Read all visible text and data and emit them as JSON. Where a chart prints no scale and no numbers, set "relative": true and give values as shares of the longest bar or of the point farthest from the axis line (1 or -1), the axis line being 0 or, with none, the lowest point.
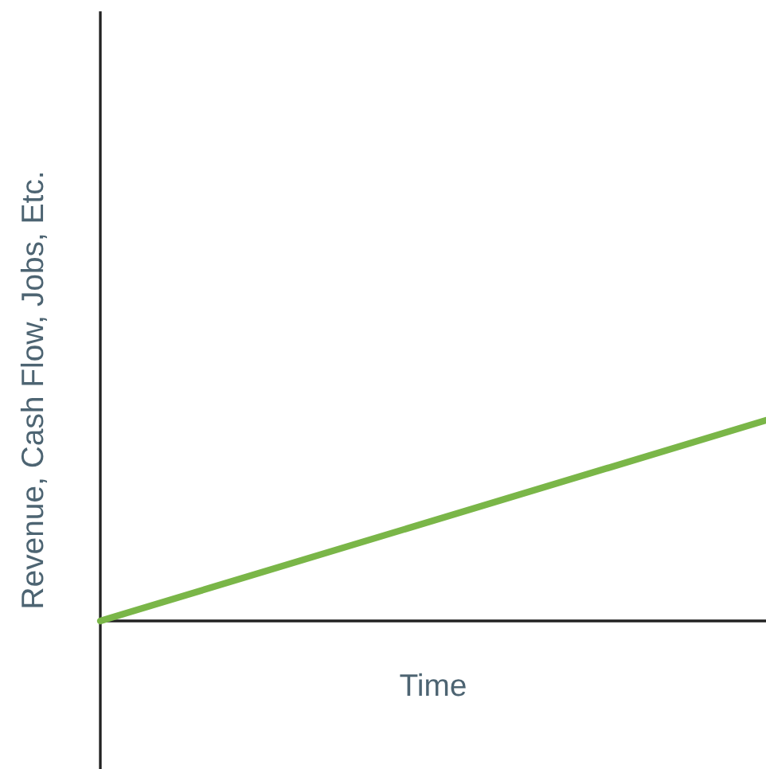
{
  "chart_data": {
    "type": "line",
    "xlabel": "Time",
    "ylabel": "Revenue, Cash Flow, Jobs, Etc.",
    "categories": [
      null,
      null
    ],
    "series": [
      {
        "color": "#7ab648",
        "values": [
          0,
          1
        ]
      }
    ],
    "relative": true,
    "grid": false,
    "legend": false,
    "marker": "none",
    "line_style": "solid"
  }
}
